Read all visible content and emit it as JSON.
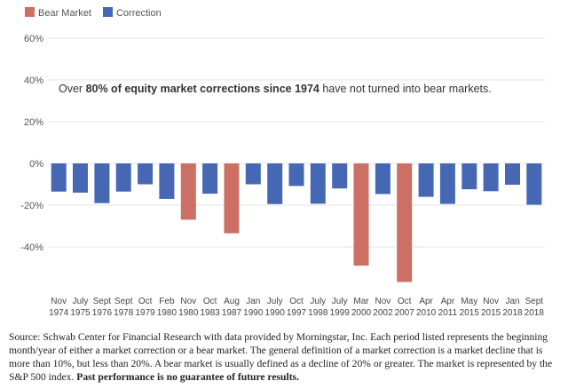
{
  "legend": [
    {
      "label": "Bear Market",
      "color": "#cc7066"
    },
    {
      "label": "Correction",
      "color": "#4668b4"
    }
  ],
  "annotation": {
    "prefix": "Over ",
    "bold1": "80% of equity market corrections since 1974",
    "suffix": " have not turned into bear markets."
  },
  "footnote": {
    "text": "Source: Schwab Center for Financial Research with data provided by Morningstar, Inc. Each period listed represents the beginning month/year of either a market correction or a bear market. The general definition of a market correction is a market decline that is more than 10%, but less than 20%. A bear market is usually defined as a decline of 20% or greater. The market is represented by the S&P 500 index. ",
    "bold": "Past performance is no guarantee of future results."
  },
  "chart_data": {
    "type": "bar",
    "title": "",
    "xlabel": "",
    "ylabel": "",
    "ylim": [
      -60,
      60
    ],
    "yticks": [
      60,
      40,
      20,
      0,
      -20,
      -40
    ],
    "ytick_labels": [
      "60%",
      "40%",
      "20%",
      "0%",
      "-20%",
      "-40%"
    ],
    "grid": true,
    "legend_position": "top-left",
    "categories": [
      [
        "Nov",
        "1974"
      ],
      [
        "July",
        "1975"
      ],
      [
        "Sept",
        "1976"
      ],
      [
        "Sept",
        "1978"
      ],
      [
        "Oct",
        "1979"
      ],
      [
        "Feb",
        "1980"
      ],
      [
        "Nov",
        "1980"
      ],
      [
        "Oct",
        "1983"
      ],
      [
        "Aug",
        "1987"
      ],
      [
        "Jan",
        "1990"
      ],
      [
        "July",
        "1990"
      ],
      [
        "Oct",
        "1997"
      ],
      [
        "July",
        "1998"
      ],
      [
        "July",
        "1999"
      ],
      [
        "Mar",
        "2000"
      ],
      [
        "Nov",
        "2002"
      ],
      [
        "Oct",
        "2007"
      ],
      [
        "Apr",
        "2010"
      ],
      [
        "Apr",
        "2011"
      ],
      [
        "May",
        "2015"
      ],
      [
        "Nov",
        "2015"
      ],
      [
        "Jan",
        "2018"
      ],
      [
        "Sept",
        "2018"
      ]
    ],
    "values": [
      -13.5,
      -14,
      -19,
      -13.5,
      -10,
      -17,
      -27,
      -14.5,
      -33.5,
      -10,
      -19.5,
      -10.8,
      -19.3,
      -12,
      -49,
      -14.7,
      -56.8,
      -16,
      -19.4,
      -12.4,
      -13.3,
      -10.2,
      -19.8
    ],
    "types": [
      "Correction",
      "Correction",
      "Correction",
      "Correction",
      "Correction",
      "Correction",
      "Bear Market",
      "Correction",
      "Bear Market",
      "Correction",
      "Correction",
      "Correction",
      "Correction",
      "Correction",
      "Bear Market",
      "Correction",
      "Bear Market",
      "Correction",
      "Correction",
      "Correction",
      "Correction",
      "Correction",
      "Correction"
    ]
  }
}
